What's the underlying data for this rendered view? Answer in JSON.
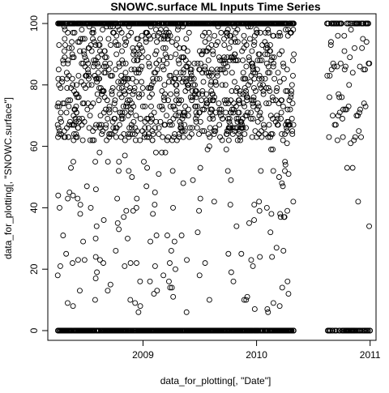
{
  "chart_data": {
    "type": "scatter",
    "title": "SNOWC.surface ML Inputs Time Series",
    "xlabel": "data_for_plotting[, \"Date\"]",
    "ylabel": "data_for_plotting[, \"SNOWC.surface\"]",
    "x_axis_type": "date",
    "xlim": [
      "2008-03-01",
      "2011-01-20"
    ],
    "ylim": [
      0,
      100
    ],
    "x_ticks": [
      {
        "date": "2009-01-01",
        "label": "2009"
      },
      {
        "date": "2010-01-01",
        "label": "2010"
      },
      {
        "date": "2011-01-01",
        "label": "2011"
      }
    ],
    "y_ticks": [
      0,
      20,
      40,
      60,
      80,
      100
    ],
    "marker": "open-circle",
    "marker_color": "#000000",
    "grid": false,
    "legend": "none",
    "segments": [
      {
        "start": "2008-04-01",
        "end": "2008-10-31",
        "points_per_day": 3,
        "mid_fraction": 0.45
      },
      {
        "start": "2008-11-01",
        "end": "2009-04-15",
        "points_per_day": 3,
        "mid_fraction": 0.55
      },
      {
        "start": "2009-04-16",
        "end": "2009-11-15",
        "points_per_day": 3,
        "mid_fraction": 0.2
      },
      {
        "start": "2009-11-16",
        "end": "2010-04-30",
        "points_per_day": 3,
        "mid_fraction": 0.5
      },
      {
        "start": "2010-08-15",
        "end": "2010-12-31",
        "points_per_day": 1,
        "mid_fraction": 0.25
      }
    ]
  }
}
